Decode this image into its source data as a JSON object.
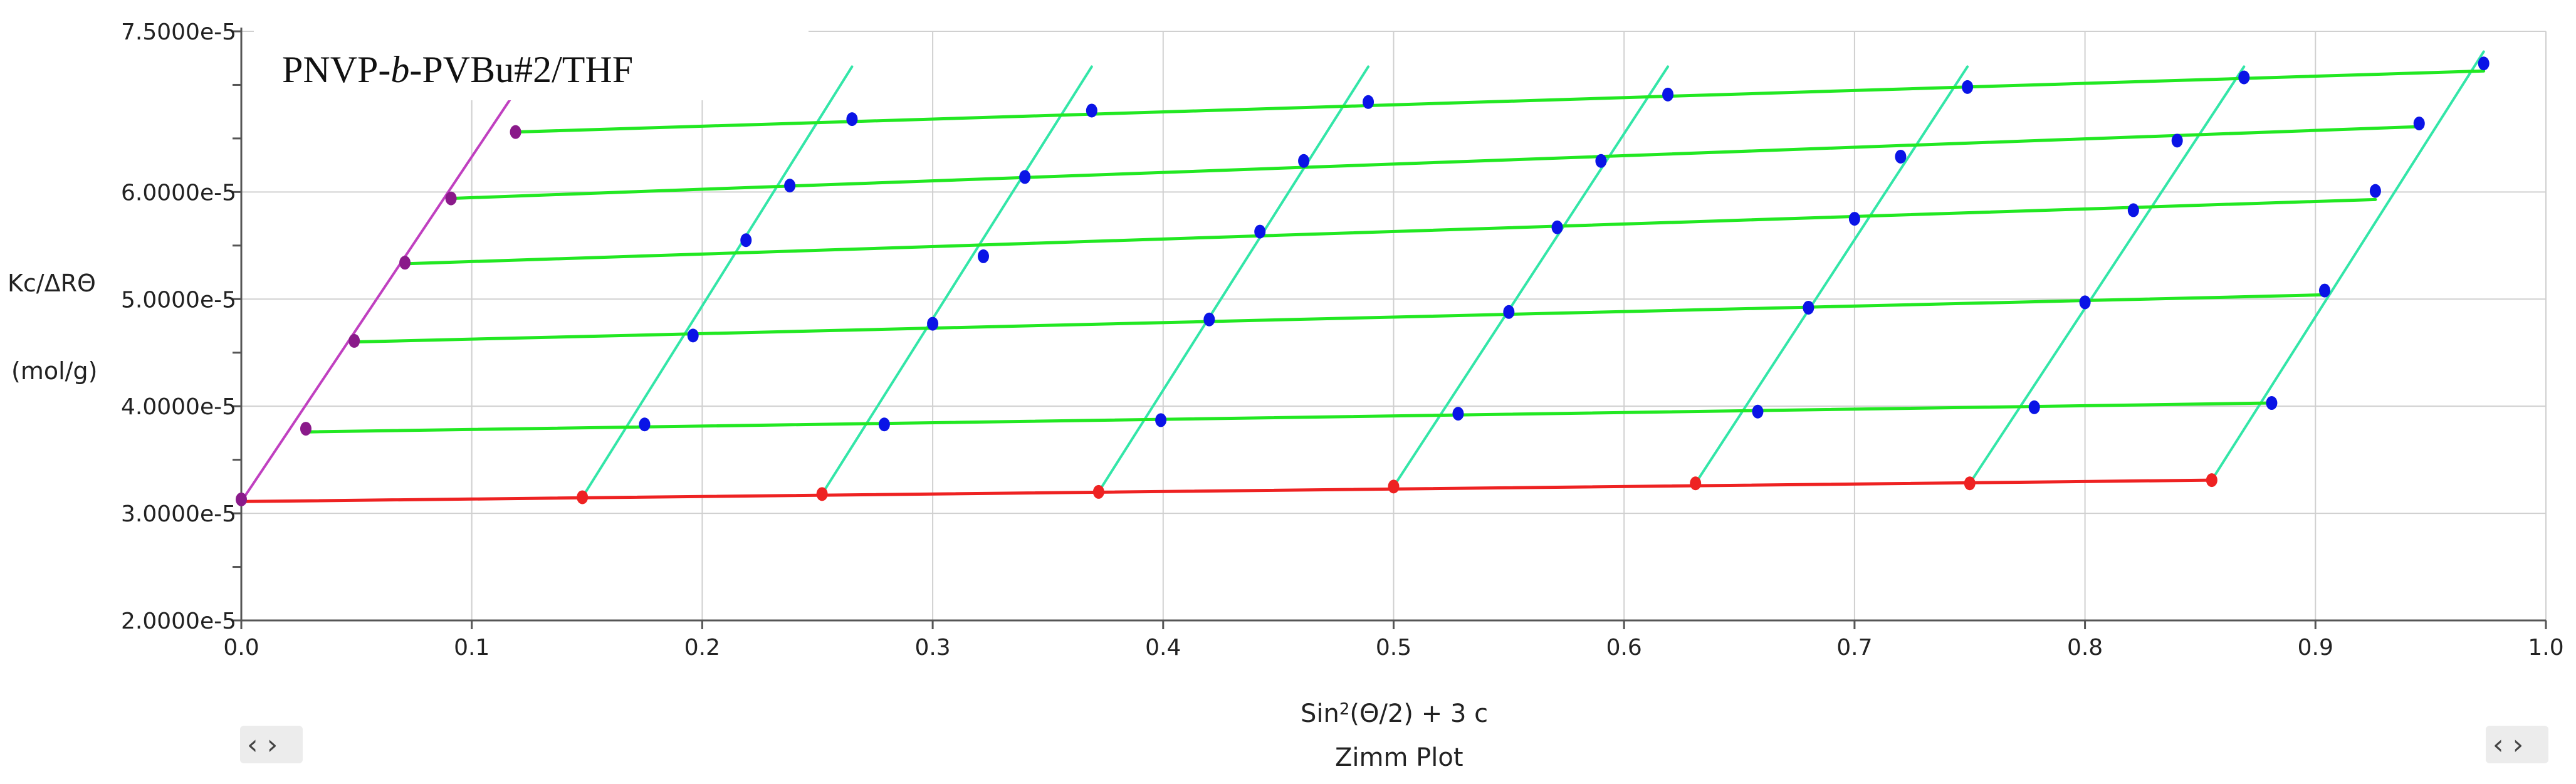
{
  "chart_data": {
    "type": "line",
    "title": "PNVP-b-PVBu#2/THF",
    "title_parts": [
      {
        "text": "PNVP-",
        "style": "normal"
      },
      {
        "text": "b",
        "style": "italic"
      },
      {
        "text": "-PVBu#2/THF",
        "style": "normal"
      }
    ],
    "xlabel_parts": [
      "Sin",
      "2",
      "(Θ/2) + 3 c"
    ],
    "caption": "Zimm Plot",
    "ylabel_line1": "Kc/ΔRΘ",
    "ylabel_line2": "(mol/g)",
    "xlim": [
      0.0,
      1.0
    ],
    "ylim": [
      2e-05,
      7.5e-05
    ],
    "grid": true,
    "x_ticks": [
      0.0,
      0.1,
      0.2,
      0.3,
      0.4,
      0.5,
      0.6,
      0.7,
      0.8,
      0.9,
      1.0
    ],
    "x_tick_labels": [
      "0.0",
      "0.1",
      "0.2",
      "0.3",
      "0.4",
      "0.5",
      "0.6",
      "0.7",
      "0.8",
      "0.9",
      "1.0"
    ],
    "y_ticks": [
      2e-05,
      3e-05,
      4e-05,
      5e-05,
      6e-05,
      7.5e-05
    ],
    "y_tick_labels": [
      "2.0000e-5",
      "3.0000e-5",
      "4.0000e-5",
      "5.0000e-5",
      "6.0000e-5",
      "7.5000e-5"
    ],
    "y_minor_step": 5e-06,
    "colors": {
      "concentration_lines": "#22e822",
      "angle_lines": "#33e6a8",
      "zero_concentration": "#ee2222",
      "zero_angle": "#c040c0",
      "measured_points": "#0a14e6",
      "zero_concentration_points": "#ee2222",
      "zero_angle_points": "#8a1a8a",
      "grid": "#d0d0d0",
      "axis": "#555555"
    },
    "zero_angle_line": {
      "x": [
        0.0,
        0.119
      ],
      "y": [
        3.11e-05,
        6.94e-05
      ]
    },
    "zero_angle_points": {
      "x": [
        0.0,
        0.028,
        0.049,
        0.071,
        0.091,
        0.119
      ],
      "y": [
        3.13e-05,
        3.79e-05,
        4.61e-05,
        5.34e-05,
        5.94e-05,
        6.56e-05
      ]
    },
    "zero_concentration_line": {
      "x": [
        0.0,
        0.855
      ],
      "y": [
        3.11e-05,
        3.31e-05
      ]
    },
    "zero_concentration_points": {
      "x": [
        0.148,
        0.252,
        0.372,
        0.5,
        0.631,
        0.75,
        0.855
      ],
      "y": [
        3.15e-05,
        3.18e-05,
        3.2e-05,
        3.25e-05,
        3.28e-05,
        3.28e-05,
        3.31e-05
      ]
    },
    "concentration_lines": [
      {
        "x": [
          0.028,
          0.881
        ],
        "y": [
          3.76e-05,
          4.03e-05
        ]
      },
      {
        "x": [
          0.049,
          0.904
        ],
        "y": [
          4.6e-05,
          5.04e-05
        ]
      },
      {
        "x": [
          0.071,
          0.926
        ],
        "y": [
          5.33e-05,
          5.93e-05
        ]
      },
      {
        "x": [
          0.091,
          0.945
        ],
        "y": [
          5.94e-05,
          6.61e-05
        ]
      },
      {
        "x": [
          0.119,
          0.973
        ],
        "y": [
          6.56e-05,
          7.13e-05
        ]
      }
    ],
    "angle_lines": [
      {
        "x": [
          0.148,
          0.265
        ],
        "y": [
          3.15e-05,
          7.17e-05
        ]
      },
      {
        "x": [
          0.252,
          0.369
        ],
        "y": [
          3.18e-05,
          7.17e-05
        ]
      },
      {
        "x": [
          0.372,
          0.489
        ],
        "y": [
          3.2e-05,
          7.17e-05
        ]
      },
      {
        "x": [
          0.5,
          0.619
        ],
        "y": [
          3.25e-05,
          7.17e-05
        ]
      },
      {
        "x": [
          0.631,
          0.749
        ],
        "y": [
          3.28e-05,
          7.17e-05
        ]
      },
      {
        "x": [
          0.75,
          0.869
        ],
        "y": [
          3.28e-05,
          7.17e-05
        ]
      },
      {
        "x": [
          0.855,
          0.973
        ],
        "y": [
          3.31e-05,
          7.31e-05
        ]
      }
    ],
    "measured_points": {
      "x": [
        0.175,
        0.196,
        0.219,
        0.238,
        0.265,
        0.279,
        0.3,
        0.322,
        0.34,
        0.369,
        0.399,
        0.42,
        0.442,
        0.461,
        0.489,
        0.528,
        0.55,
        0.571,
        0.59,
        0.619,
        0.658,
        0.68,
        0.7,
        0.72,
        0.749,
        0.778,
        0.8,
        0.821,
        0.84,
        0.869,
        0.881,
        0.904,
        0.926,
        0.945,
        0.973
      ],
      "y": [
        3.83e-05,
        4.66e-05,
        5.55e-05,
        6.06e-05,
        6.68e-05,
        3.83e-05,
        4.77e-05,
        5.4e-05,
        6.14e-05,
        6.76e-05,
        3.87e-05,
        4.81e-05,
        5.63e-05,
        6.29e-05,
        6.84e-05,
        3.93e-05,
        4.88e-05,
        5.67e-05,
        6.29e-05,
        6.91e-05,
        3.95e-05,
        4.92e-05,
        5.75e-05,
        6.33e-05,
        6.98e-05,
        3.99e-05,
        4.97e-05,
        5.83e-05,
        6.48e-05,
        7.07e-05,
        4.03e-05,
        5.08e-05,
        6.01e-05,
        6.64e-05,
        7.2e-05
      ]
    }
  },
  "controls": {
    "left_scroll": "‹ ›",
    "right_scroll": "‹ ›"
  }
}
